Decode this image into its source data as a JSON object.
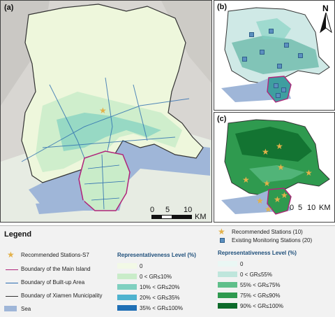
{
  "panels": {
    "a": {
      "label": "(a)"
    },
    "b": {
      "label": "(b)"
    },
    "c": {
      "label": "(c)"
    }
  },
  "north_arrow": {
    "letter": "N"
  },
  "scale_bars": [
    {
      "ticks": [
        "0",
        "5",
        "10"
      ],
      "unit": "KM"
    },
    {
      "ticks": [
        "0",
        "5",
        "10"
      ],
      "unit": "KM"
    }
  ],
  "legend": {
    "title": "Legend",
    "recommended_s7": "Recommended Stations-S7",
    "boundary_main_island": "Boundary of the Main Island",
    "boundary_builtup": "Boundary of Built-up Area",
    "boundary_xiamen": "Boundary of Xiamen Municipality",
    "sea": "Sea",
    "repr_title_a": "Representativeness Level (%)",
    "repr_levels_a": [
      "0",
      "0 < GR≤10%",
      "10% < GR≤20%",
      "20% < GR≤35%",
      "35% < GR≤100%"
    ],
    "recommended_count": "Recommended Stations (10)",
    "existing_count": "Existing Monitoring Stations (20)",
    "repr_title_c": "Representativeness Level (%)",
    "repr_levels_c": [
      "0",
      "0 < GR≤55%",
      "55% < GR≤75%",
      "75% < GR≤90%",
      "90% < GR≤100%"
    ]
  },
  "colors": {
    "sea": "#9fb6d8",
    "land_a": "#eef7dc",
    "level_a": [
      "#f2f9e6",
      "#c9ecc9",
      "#7fd0c0",
      "#4fb3cf",
      "#1f6fb5"
    ],
    "level_c": [
      "#eaf7f4",
      "#bfe6dc",
      "#5fbf8a",
      "#2f9a4f",
      "#0d6a2a"
    ],
    "main_island": "#b0247a",
    "builtup": "#2b6cb0",
    "xiamen": "#333333",
    "star": "#e3b14a",
    "existing": "#5b8fbf"
  }
}
